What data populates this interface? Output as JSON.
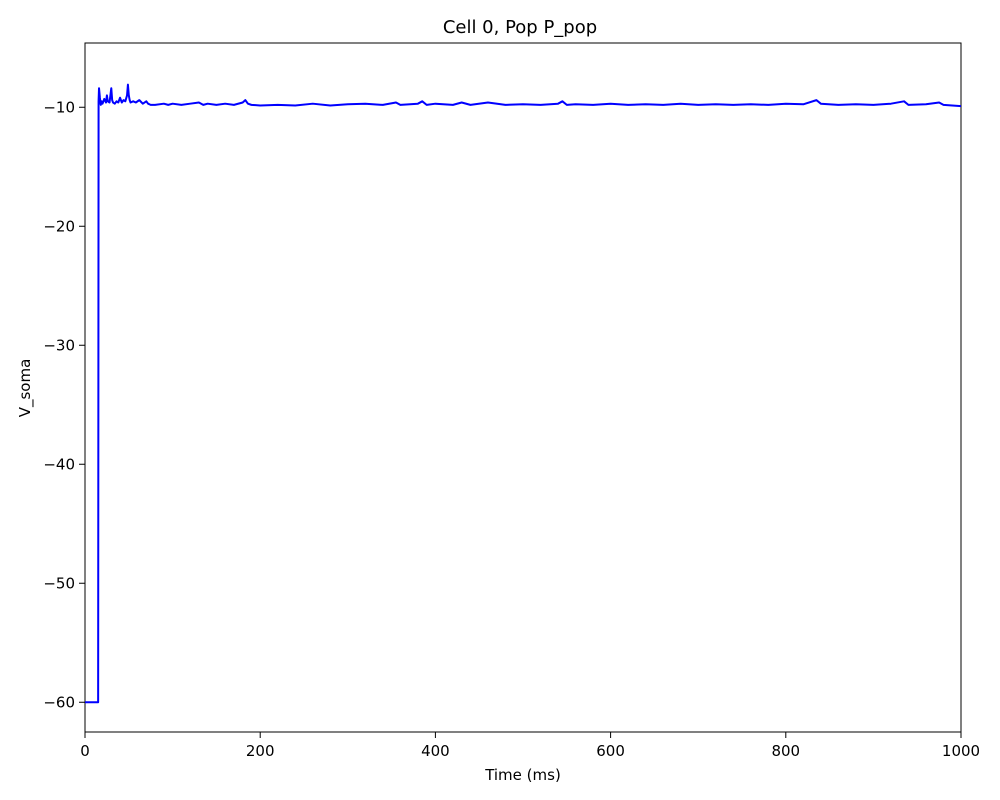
{
  "chart_data": {
    "type": "line",
    "title": "Cell 0, Pop P_pop",
    "xlabel": "Time (ms)",
    "ylabel": "V_soma",
    "xlim": [
      0,
      1000
    ],
    "ylim": [
      -62.5,
      -4.6
    ],
    "xticks": [
      0,
      200,
      400,
      600,
      800,
      1000
    ],
    "xtick_labels": [
      "0",
      "200",
      "400",
      "600",
      "800",
      "1000"
    ],
    "yticks": [
      -60,
      -50,
      -40,
      -30,
      -20,
      -10
    ],
    "ytick_labels": [
      "−60",
      "−50",
      "−40",
      "−30",
      "−20",
      "−10"
    ],
    "grid": false,
    "series": [
      {
        "color": "#0000ff",
        "x": [
          0,
          15,
          15.5,
          16,
          17,
          18,
          19,
          20,
          22,
          24,
          25,
          26,
          28,
          30,
          31,
          32,
          34,
          36,
          38,
          40,
          42,
          44,
          46,
          48,
          49,
          50,
          51,
          52,
          55,
          58,
          62,
          66,
          70,
          72,
          75,
          80,
          90,
          95,
          100,
          110,
          120,
          130,
          135,
          140,
          150,
          160,
          170,
          180,
          183,
          186,
          190,
          200,
          220,
          240,
          260,
          280,
          300,
          320,
          340,
          355,
          360,
          380,
          385,
          390,
          400,
          420,
          430,
          440,
          460,
          480,
          500,
          520,
          540,
          545,
          550,
          560,
          580,
          600,
          620,
          640,
          660,
          680,
          700,
          720,
          740,
          760,
          780,
          800,
          820,
          835,
          840,
          860,
          880,
          900,
          920,
          935,
          940,
          960,
          975,
          980,
          1000
        ],
        "y": [
          -60,
          -60,
          -9.5,
          -8.4,
          -9.2,
          -9.8,
          -9.5,
          -9.7,
          -9.3,
          -9.6,
          -9.0,
          -9.5,
          -9.6,
          -8.4,
          -9.4,
          -9.6,
          -9.7,
          -9.5,
          -9.6,
          -9.2,
          -9.6,
          -9.4,
          -9.5,
          -9.0,
          -8.1,
          -9.0,
          -9.4,
          -9.6,
          -9.5,
          -9.6,
          -9.4,
          -9.7,
          -9.5,
          -9.7,
          -9.8,
          -9.8,
          -9.7,
          -9.8,
          -9.7,
          -9.8,
          -9.7,
          -9.6,
          -9.8,
          -9.7,
          -9.8,
          -9.7,
          -9.8,
          -9.6,
          -9.4,
          -9.7,
          -9.8,
          -9.85,
          -9.8,
          -9.85,
          -9.7,
          -9.85,
          -9.75,
          -9.7,
          -9.8,
          -9.6,
          -9.8,
          -9.7,
          -9.5,
          -9.8,
          -9.7,
          -9.8,
          -9.6,
          -9.8,
          -9.6,
          -9.8,
          -9.75,
          -9.8,
          -9.7,
          -9.5,
          -9.8,
          -9.75,
          -9.8,
          -9.7,
          -9.8,
          -9.75,
          -9.8,
          -9.7,
          -9.8,
          -9.75,
          -9.8,
          -9.75,
          -9.8,
          -9.7,
          -9.75,
          -9.4,
          -9.7,
          -9.8,
          -9.75,
          -9.8,
          -9.7,
          -9.5,
          -9.8,
          -9.75,
          -9.6,
          -9.8,
          -9.9
        ]
      }
    ]
  }
}
